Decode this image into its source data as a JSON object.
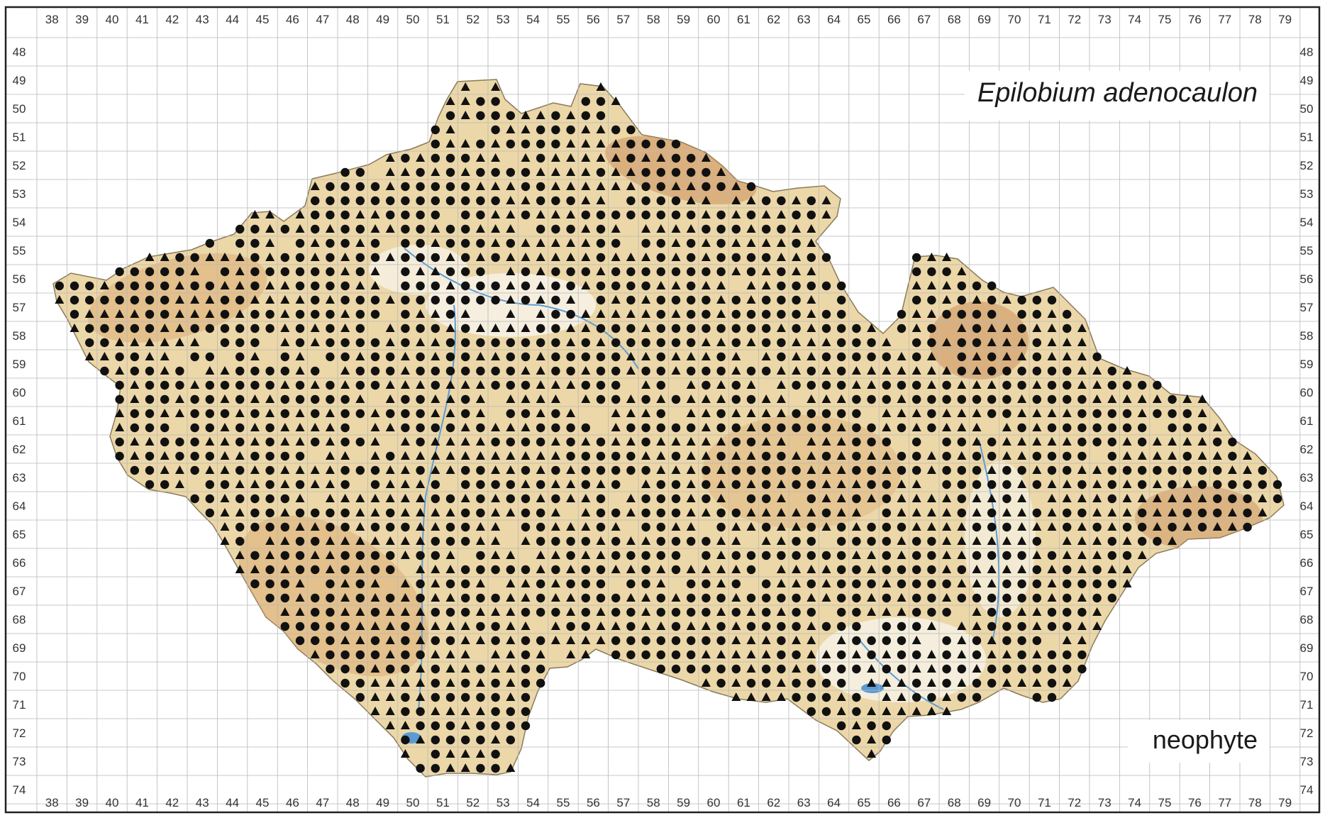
{
  "map": {
    "species": "Epilobium adenocaulon",
    "status": "neophyte",
    "columns": [
      "38",
      "39",
      "40",
      "41",
      "42",
      "43",
      "44",
      "45",
      "46",
      "47",
      "48",
      "49",
      "50",
      "51",
      "52",
      "53",
      "54",
      "55",
      "56",
      "57",
      "58",
      "59",
      "60",
      "61",
      "62",
      "63",
      "64",
      "65",
      "66",
      "67",
      "68",
      "69",
      "70",
      "71",
      "72",
      "73",
      "74",
      "75",
      "76",
      "77",
      "78",
      "79"
    ],
    "rows": [
      "48",
      "49",
      "50",
      "51",
      "52",
      "53",
      "54",
      "55",
      "56",
      "57",
      "58",
      "59",
      "60",
      "61",
      "62",
      "63",
      "64",
      "65",
      "66",
      "67",
      "68",
      "69",
      "70",
      "71",
      "72",
      "73",
      "74"
    ],
    "colors": {
      "grid": "#b8b8b8",
      "frame": "#222222",
      "land": "#ecd7a8",
      "land_high": "#d9a46b",
      "lowland": "#f4ecd8",
      "water": "#5a9bd5",
      "marker": "#111111"
    },
    "marker_types": {
      "dot": "circle",
      "tri": "triangle"
    }
  }
}
